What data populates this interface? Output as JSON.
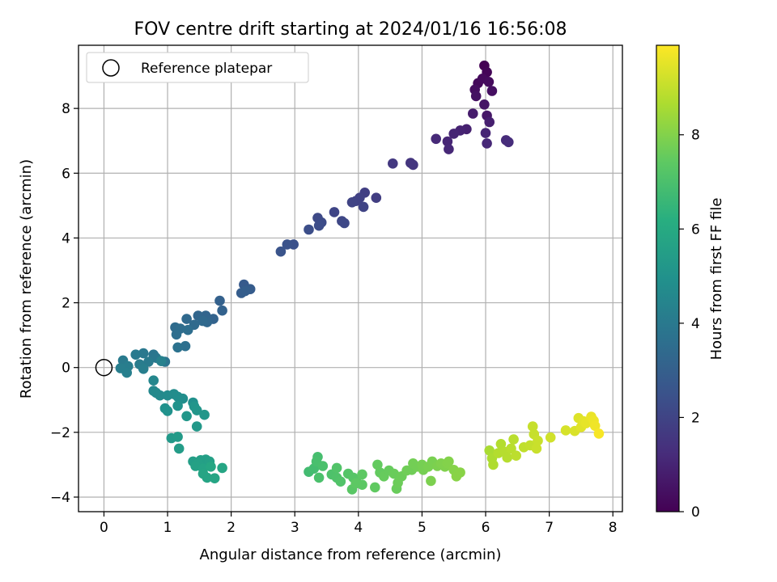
{
  "chart_data": {
    "type": "scatter",
    "title": "FOV centre drift starting at 2024/01/16 16:56:08",
    "xlabel": "Angular distance from reference (arcmin)",
    "ylabel": "Rotation from reference (arcmin)",
    "xlim": [
      -0.4,
      8.15
    ],
    "ylim": [
      -4.45,
      9.95
    ],
    "xticks": [
      0,
      1,
      2,
      3,
      4,
      5,
      6,
      7,
      8
    ],
    "yticks": [
      -4,
      -2,
      0,
      2,
      4,
      6,
      8
    ],
    "grid": true,
    "legend": {
      "placement": "top-left",
      "entries": [
        "Reference platepar"
      ]
    },
    "reference_point": {
      "x": 0,
      "y": 0
    },
    "colorbar": {
      "label": "Hours from first FF file",
      "range": [
        0,
        9.9
      ],
      "ticks": [
        0,
        2,
        4,
        6,
        8
      ],
      "colormap": "viridis"
    },
    "points": [
      [
        5.98,
        9.32,
        0.0
      ],
      [
        6.02,
        9.12,
        0.1
      ],
      [
        5.88,
        8.78,
        0.2
      ],
      [
        5.95,
        8.92,
        0.25
      ],
      [
        6.05,
        8.82,
        0.3
      ],
      [
        5.83,
        8.58,
        0.35
      ],
      [
        6.1,
        8.54,
        0.4
      ],
      [
        5.85,
        8.38,
        0.45
      ],
      [
        5.98,
        8.12,
        0.55
      ],
      [
        6.02,
        7.78,
        0.65
      ],
      [
        5.8,
        7.84,
        0.75
      ],
      [
        6.06,
        7.58,
        0.85
      ],
      [
        5.7,
        7.36,
        0.9
      ],
      [
        5.6,
        7.32,
        0.95
      ],
      [
        5.5,
        7.22,
        1.0
      ],
      [
        5.4,
        6.98,
        1.05
      ],
      [
        5.42,
        6.74,
        1.1
      ],
      [
        5.22,
        7.06,
        1.15
      ],
      [
        6.0,
        7.24,
        1.05
      ],
      [
        6.02,
        6.92,
        1.1
      ],
      [
        6.32,
        7.02,
        1.2
      ],
      [
        6.36,
        6.96,
        1.25
      ],
      [
        4.82,
        6.32,
        1.5
      ],
      [
        4.86,
        6.26,
        1.55
      ],
      [
        4.54,
        6.3,
        1.6
      ],
      [
        4.28,
        5.24,
        1.8
      ],
      [
        4.1,
        5.4,
        1.85
      ],
      [
        4.02,
        5.24,
        1.9
      ],
      [
        3.96,
        5.14,
        1.95
      ],
      [
        3.9,
        5.1,
        2.0
      ],
      [
        4.08,
        4.96,
        2.0
      ],
      [
        3.62,
        4.8,
        2.05
      ],
      [
        3.74,
        4.52,
        2.1
      ],
      [
        3.78,
        4.46,
        2.15
      ],
      [
        3.36,
        4.62,
        2.2
      ],
      [
        3.42,
        4.48,
        2.25
      ],
      [
        3.38,
        4.38,
        2.3
      ],
      [
        3.22,
        4.26,
        2.35
      ],
      [
        2.98,
        3.8,
        2.45
      ],
      [
        2.88,
        3.8,
        2.5
      ],
      [
        2.78,
        3.58,
        2.55
      ],
      [
        2.2,
        2.56,
        2.8
      ],
      [
        2.3,
        2.42,
        2.85
      ],
      [
        2.16,
        2.3,
        2.9
      ],
      [
        2.22,
        2.36,
        2.95
      ],
      [
        1.82,
        2.06,
        3.05
      ],
      [
        1.86,
        1.76,
        3.1
      ],
      [
        1.72,
        1.5,
        3.15
      ],
      [
        1.6,
        1.6,
        3.2
      ],
      [
        1.48,
        1.6,
        3.25
      ],
      [
        1.62,
        1.4,
        3.3
      ],
      [
        1.3,
        1.5,
        3.35
      ],
      [
        1.55,
        1.44,
        3.35
      ],
      [
        1.42,
        1.32,
        3.4
      ],
      [
        1.12,
        1.24,
        3.45
      ],
      [
        1.2,
        1.2,
        3.5
      ],
      [
        1.14,
        1.02,
        3.55
      ],
      [
        1.32,
        1.16,
        3.55
      ],
      [
        1.28,
        0.66,
        3.65
      ],
      [
        1.16,
        0.62,
        3.7
      ],
      [
        0.96,
        0.18,
        3.8
      ],
      [
        0.78,
        0.4,
        3.85
      ],
      [
        0.82,
        0.3,
        3.9
      ],
      [
        0.62,
        0.44,
        3.95
      ],
      [
        0.5,
        0.4,
        4.0
      ],
      [
        0.7,
        0.18,
        4.05
      ],
      [
        0.3,
        0.22,
        4.05
      ],
      [
        0.56,
        0.1,
        4.1
      ],
      [
        0.38,
        0.04,
        4.15
      ],
      [
        0.26,
        -0.02,
        4.2
      ],
      [
        0.62,
        -0.04,
        4.2
      ],
      [
        0.36,
        -0.16,
        4.25
      ],
      [
        0.9,
        0.2,
        4.3
      ],
      [
        0.78,
        -0.4,
        4.55
      ],
      [
        0.78,
        -0.72,
        4.6
      ],
      [
        0.88,
        -0.86,
        4.65
      ],
      [
        0.82,
        -0.78,
        4.65
      ],
      [
        1.0,
        -0.86,
        4.7
      ],
      [
        1.1,
        -0.82,
        4.75
      ],
      [
        1.16,
        -0.9,
        4.8
      ],
      [
        1.24,
        -0.96,
        4.85
      ],
      [
        1.4,
        -1.08,
        4.9
      ],
      [
        0.96,
        -1.26,
        4.95
      ],
      [
        1.0,
        -1.34,
        5.0
      ],
      [
        1.16,
        -1.18,
        5.0
      ],
      [
        1.42,
        -1.2,
        5.1
      ],
      [
        1.46,
        -1.32,
        5.15
      ],
      [
        1.58,
        -1.46,
        5.2
      ],
      [
        1.3,
        -1.5,
        5.2
      ],
      [
        1.46,
        -1.82,
        5.25
      ],
      [
        1.06,
        -2.18,
        5.3
      ],
      [
        1.16,
        -2.14,
        5.35
      ],
      [
        1.18,
        -2.5,
        5.4
      ],
      [
        1.4,
        -2.9,
        5.5
      ],
      [
        1.52,
        -2.86,
        5.55
      ],
      [
        1.6,
        -2.84,
        5.55
      ],
      [
        1.66,
        -2.9,
        5.6
      ],
      [
        1.48,
        -2.96,
        5.6
      ],
      [
        1.44,
        -3.04,
        5.65
      ],
      [
        1.56,
        -3.12,
        5.7
      ],
      [
        1.62,
        -3.4,
        5.75
      ],
      [
        1.56,
        -3.28,
        5.75
      ],
      [
        1.74,
        -3.42,
        5.8
      ],
      [
        1.86,
        -3.1,
        5.8
      ],
      [
        1.68,
        -3.06,
        5.85
      ],
      [
        3.22,
        -3.22,
        6.8
      ],
      [
        3.3,
        -3.12,
        6.85
      ],
      [
        3.36,
        -2.76,
        6.9
      ],
      [
        3.34,
        -2.9,
        6.95
      ],
      [
        3.44,
        -3.04,
        7.0
      ],
      [
        3.38,
        -3.4,
        7.0
      ],
      [
        3.58,
        -3.3,
        7.05
      ],
      [
        3.66,
        -3.4,
        7.1
      ],
      [
        3.72,
        -3.52,
        7.15
      ],
      [
        3.66,
        -3.1,
        7.15
      ],
      [
        3.84,
        -3.28,
        7.2
      ],
      [
        3.92,
        -3.4,
        7.25
      ],
      [
        3.98,
        -3.56,
        7.3
      ],
      [
        3.9,
        -3.76,
        7.3
      ],
      [
        4.06,
        -3.62,
        7.35
      ],
      [
        3.96,
        -3.58,
        7.4
      ],
      [
        4.06,
        -3.3,
        7.4
      ],
      [
        4.26,
        -3.7,
        7.45
      ],
      [
        4.3,
        -3.0,
        7.5
      ],
      [
        4.34,
        -3.24,
        7.5
      ],
      [
        4.4,
        -3.36,
        7.55
      ],
      [
        4.48,
        -3.18,
        7.55
      ],
      [
        4.56,
        -3.28,
        7.6
      ],
      [
        4.6,
        -3.74,
        7.6
      ],
      [
        4.62,
        -3.56,
        7.65
      ],
      [
        4.68,
        -3.36,
        7.65
      ],
      [
        4.76,
        -3.18,
        7.7
      ],
      [
        4.84,
        -3.16,
        7.7
      ],
      [
        4.86,
        -2.96,
        7.75
      ],
      [
        4.92,
        -3.06,
        7.75
      ],
      [
        5.0,
        -3.0,
        7.8
      ],
      [
        5.02,
        -3.16,
        7.8
      ],
      [
        5.1,
        -3.06,
        7.85
      ],
      [
        5.16,
        -2.9,
        7.85
      ],
      [
        5.14,
        -3.5,
        7.9
      ],
      [
        5.24,
        -3.04,
        7.9
      ],
      [
        5.3,
        -2.96,
        7.95
      ],
      [
        5.36,
        -3.06,
        7.95
      ],
      [
        5.4,
        -2.96,
        8.0
      ],
      [
        5.42,
        -2.9,
        8.0
      ],
      [
        5.5,
        -3.16,
        8.05
      ],
      [
        5.54,
        -3.36,
        8.1
      ],
      [
        5.6,
        -3.24,
        8.1
      ],
      [
        6.06,
        -2.56,
        8.6
      ],
      [
        6.1,
        -2.8,
        8.65
      ],
      [
        6.12,
        -3.0,
        8.7
      ],
      [
        6.2,
        -2.64,
        8.75
      ],
      [
        6.24,
        -2.36,
        8.75
      ],
      [
        6.3,
        -2.6,
        8.8
      ],
      [
        6.34,
        -2.78,
        8.8
      ],
      [
        6.4,
        -2.5,
        8.85
      ],
      [
        6.44,
        -2.22,
        8.85
      ],
      [
        6.48,
        -2.72,
        8.9
      ],
      [
        6.6,
        -2.46,
        8.95
      ],
      [
        6.7,
        -2.4,
        9.0
      ],
      [
        6.74,
        -1.82,
        9.05
      ],
      [
        6.76,
        -2.06,
        9.05
      ],
      [
        6.82,
        -2.26,
        9.1
      ],
      [
        6.8,
        -2.5,
        9.1
      ],
      [
        7.02,
        -2.16,
        9.2
      ],
      [
        7.26,
        -1.94,
        9.3
      ],
      [
        7.4,
        -1.96,
        9.35
      ],
      [
        7.46,
        -1.56,
        9.4
      ],
      [
        7.5,
        -1.84,
        9.45
      ],
      [
        7.54,
        -1.66,
        9.5
      ],
      [
        7.58,
        -1.72,
        9.55
      ],
      [
        7.66,
        -1.52,
        9.6
      ],
      [
        7.7,
        -1.64,
        9.65
      ],
      [
        7.72,
        -1.8,
        9.7
      ],
      [
        7.78,
        -2.04,
        9.8
      ]
    ]
  }
}
